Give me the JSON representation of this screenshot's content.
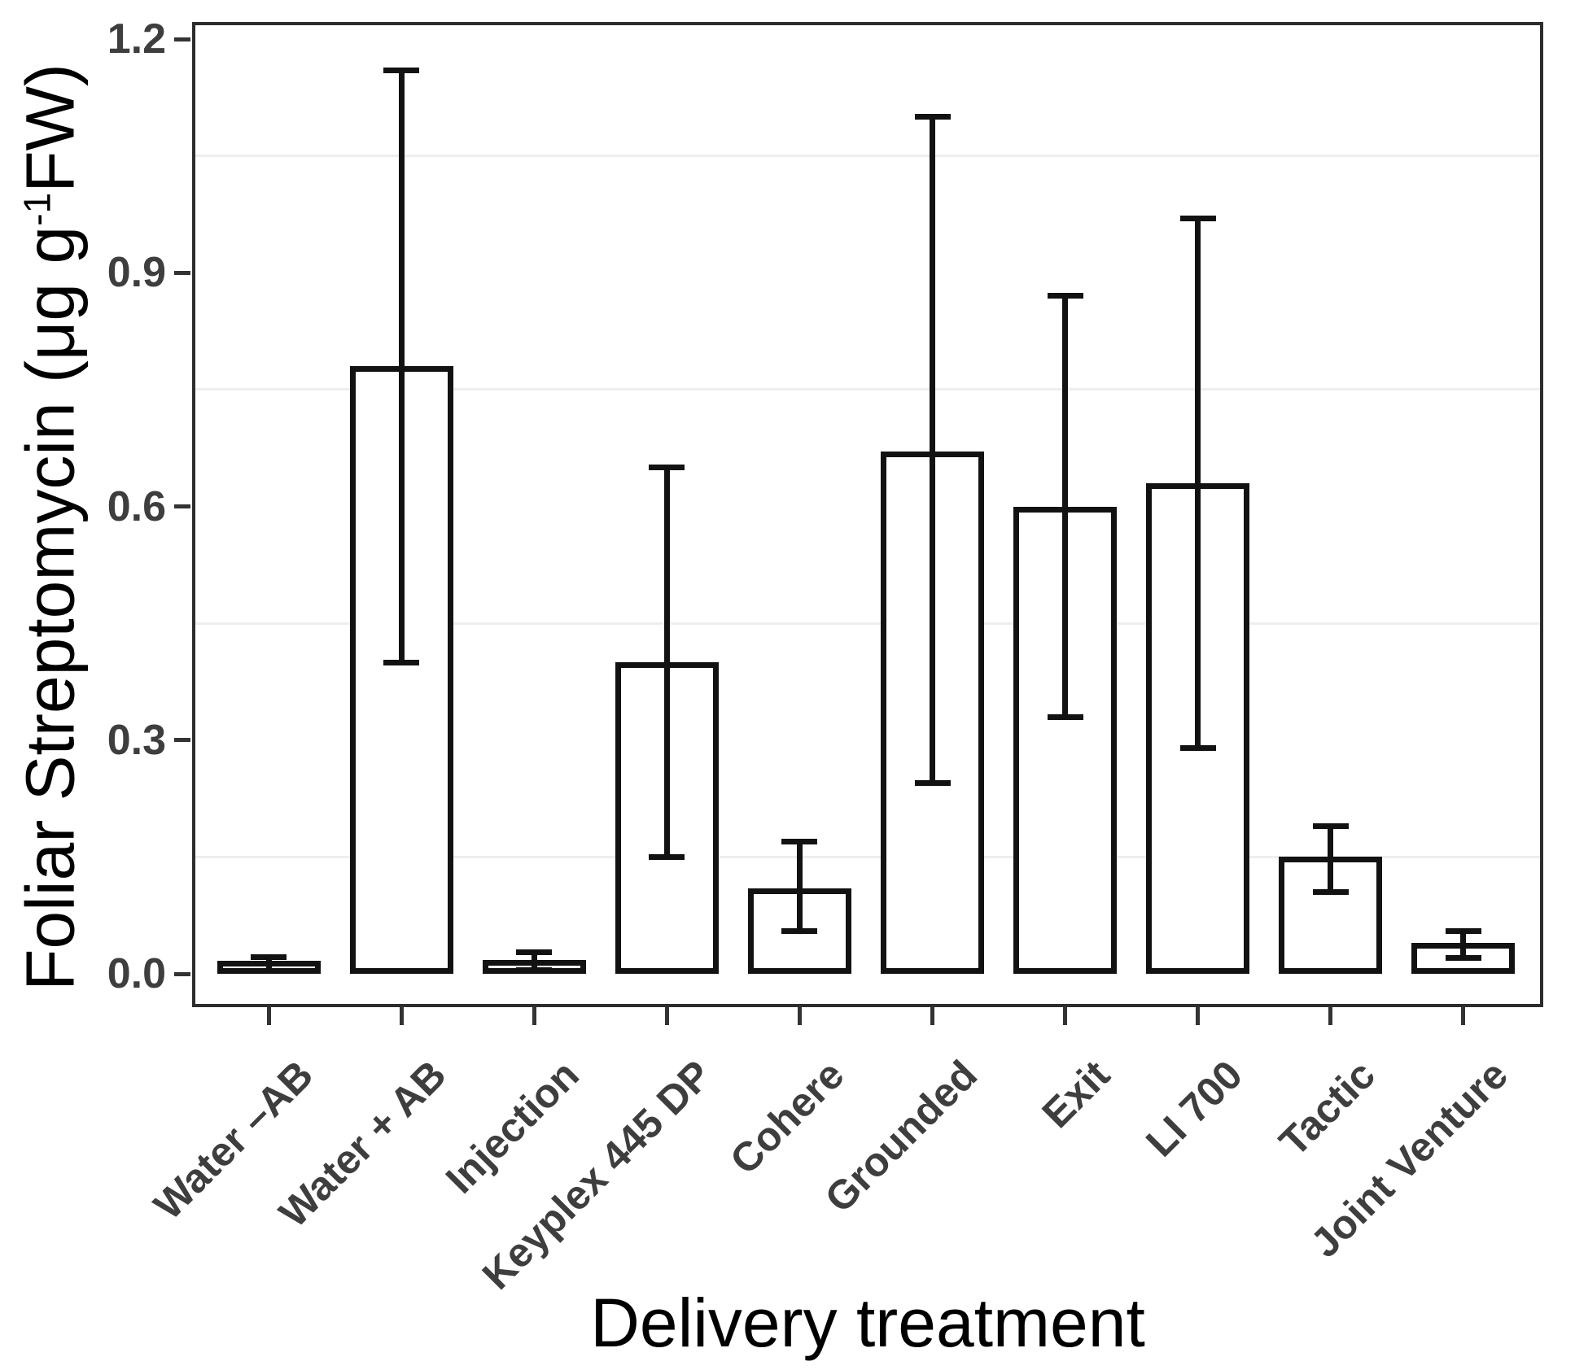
{
  "chart_data": {
    "type": "bar",
    "title": "",
    "xlabel": "Delivery treatment",
    "ylabel": "Foliar Streptomycin (μg g⁻¹FW)",
    "ylabel_parts": {
      "prefix": "Foliar Streptomycin (μg g",
      "superscript": "-1",
      "suffix": "FW)"
    },
    "categories": [
      "Water –AB",
      "Water + AB",
      "Injection",
      "Keyplex 445 DP",
      "Cohere",
      "Grounded",
      "Exit",
      "LI 700",
      "Tactic",
      "Joint Venture"
    ],
    "series": [
      {
        "name": "mean",
        "values": [
          0.012,
          0.78,
          0.018,
          0.4,
          0.11,
          0.67,
          0.6,
          0.63,
          0.15,
          0.04
        ]
      },
      {
        "name": "error_low",
        "values": [
          0.004,
          0.4,
          0.005,
          0.15,
          0.055,
          0.245,
          0.33,
          0.29,
          0.105,
          0.02
        ]
      },
      {
        "name": "error_high",
        "values": [
          0.021,
          1.16,
          0.028,
          0.65,
          0.17,
          1.1,
          0.87,
          0.97,
          0.19,
          0.055
        ]
      }
    ],
    "yticks": [
      0.0,
      0.3,
      0.6,
      0.9,
      1.2
    ],
    "ytick_labels": [
      "0.0",
      "0.3",
      "0.6",
      "0.9",
      "1.2"
    ],
    "minor_gridlines": [
      0.15,
      0.45,
      0.75,
      1.05
    ],
    "ylim": [
      0,
      1.26
    ],
    "grid": "minor-horizontal-only",
    "legend": "none",
    "bar_fill": "#ffffff",
    "error_bar_style": "mean with lower/upper capped whiskers"
  },
  "colors": {
    "background": "#ffffff",
    "panel_border": "#2d2d2d",
    "axis_tick": "#333333",
    "tick_label": "#3e3e3e",
    "axis_title": "#000000",
    "gridline_minor": "#eeeeee",
    "bar_outline": "#121212"
  }
}
